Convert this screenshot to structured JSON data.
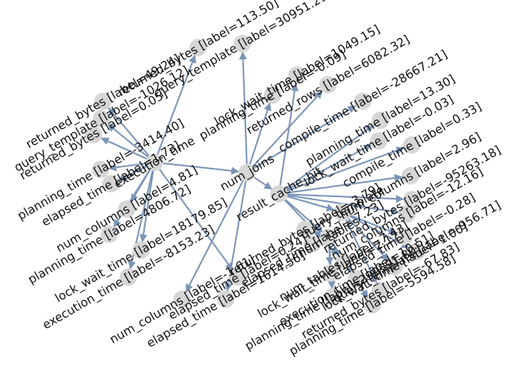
{
  "colors": {
    "node": "#d6d6d6",
    "edge": "#7b95b8",
    "text": "#111111"
  },
  "nodes": [
    {
      "id": "hub_left",
      "label": "execution_time"
    },
    {
      "id": "hub_mid",
      "label": "num_joins"
    },
    {
      "id": "hub_rc",
      "label": "result_cache_hit"
    },
    {
      "id": "hub_qt",
      "label": "query_template"
    },
    {
      "id": "hub_nt",
      "label": "num_tables"
    },
    {
      "id": "n1",
      "label": "returned_bytes [label=113.50]"
    },
    {
      "id": "n2",
      "label": "query_template [label=30951.29]"
    },
    {
      "id": "n3",
      "label": "lock_wait_time [label=1049.15]"
    },
    {
      "id": "n4",
      "label": "returned_bytes [label=49.24]"
    },
    {
      "id": "n5",
      "label": "planning_time [label=-0.09]"
    },
    {
      "id": "n6",
      "label": "planning_time [label=-3414.40]"
    },
    {
      "id": "n7",
      "label": "returned_rows [label=6082.32]"
    },
    {
      "id": "n8",
      "label": "compile_time [label=-28667.21]"
    },
    {
      "id": "n9",
      "label": "elapsed_time [label=1.73]"
    },
    {
      "id": "n10",
      "label": "planning_time [label=13.30]"
    },
    {
      "id": "n11",
      "label": "lock_wait_time [label=-0.03]"
    },
    {
      "id": "n12",
      "label": "num_columns [label=4.81]"
    },
    {
      "id": "n13",
      "label": "compile_time [label=0.33]"
    },
    {
      "id": "n14",
      "label": "num_columns [label=2.96]"
    },
    {
      "id": "n15",
      "label": "planning_time [label=4806.72]"
    },
    {
      "id": "n16",
      "label": "returned_bytes [label=-95263.18]"
    },
    {
      "id": "n17",
      "label": "lock_wait_time [label=18179.85]"
    },
    {
      "id": "n18",
      "label": "num_columns [label=-12.16]"
    },
    {
      "id": "n19",
      "label": "elapsed_time [label=-0.28]"
    },
    {
      "id": "n20",
      "label": "execution_time [label=-8153.23]"
    },
    {
      "id": "n21",
      "label": "query_template [label=-956.71]"
    },
    {
      "id": "n22",
      "label": "elapsed_time [label=0.24]"
    },
    {
      "id": "n23",
      "label": "lock_wait_time [label=1.00]"
    },
    {
      "id": "n24",
      "label": "num_columns [label=-1.61]"
    },
    {
      "id": "n25",
      "label": "returned_bytes [label=-3.79]"
    },
    {
      "id": "n26",
      "label": "returned_bytes [label=-67.83]"
    },
    {
      "id": "n27",
      "label": "elapsed_time [label=1614.56]"
    },
    {
      "id": "n28",
      "label": "planning_time [label=-5594.58]"
    },
    {
      "id": "n29",
      "label": "execution_time [label=10.51]"
    },
    {
      "id": "n30",
      "label": "num_tables [label=7.43]"
    },
    {
      "id": "n31",
      "label": "lock_wait_time [label=2.17]"
    },
    {
      "id": "n32",
      "label": "planning_time [label=299591.80]"
    },
    {
      "id": "n33",
      "label": "elapsed_time [label=-7.23]"
    },
    {
      "id": "n34",
      "label": "query_template [label=-1026.12]"
    },
    {
      "id": "n35",
      "label": "returned_bytes [label=0.05]"
    }
  ],
  "edges": [
    [
      "hub_left",
      "n1"
    ],
    [
      "hub_left",
      "n4"
    ],
    [
      "hub_left",
      "n6"
    ],
    [
      "hub_left",
      "n9"
    ],
    [
      "hub_left",
      "n12"
    ],
    [
      "hub_left",
      "n15"
    ],
    [
      "hub_left",
      "n17"
    ],
    [
      "hub_left",
      "n20"
    ],
    [
      "hub_left",
      "n22"
    ],
    [
      "hub_left",
      "n34"
    ],
    [
      "hub_left",
      "n35"
    ],
    [
      "hub_left",
      "hub_mid"
    ],
    [
      "hub_mid",
      "n2"
    ],
    [
      "hub_mid",
      "n5"
    ],
    [
      "hub_mid",
      "n7"
    ],
    [
      "hub_mid",
      "n8"
    ],
    [
      "hub_mid",
      "n24"
    ],
    [
      "hub_mid",
      "n27"
    ],
    [
      "hub_mid",
      "hub_rc"
    ],
    [
      "hub_rc",
      "n3"
    ],
    [
      "hub_rc",
      "n10"
    ],
    [
      "hub_rc",
      "n11"
    ],
    [
      "hub_rc",
      "n13"
    ],
    [
      "hub_rc",
      "n14"
    ],
    [
      "hub_rc",
      "n16"
    ],
    [
      "hub_rc",
      "n18"
    ],
    [
      "hub_rc",
      "n30"
    ],
    [
      "hub_rc",
      "hub_qt"
    ],
    [
      "hub_qt",
      "n19"
    ],
    [
      "hub_qt",
      "n21"
    ],
    [
      "hub_qt",
      "n23"
    ],
    [
      "hub_qt",
      "n26"
    ],
    [
      "hub_nt",
      "n25"
    ],
    [
      "hub_nt",
      "n28"
    ],
    [
      "hub_nt",
      "n29"
    ],
    [
      "hub_nt",
      "n31"
    ],
    [
      "hub_nt",
      "n32"
    ],
    [
      "hub_nt",
      "n33"
    ],
    [
      "hub_rc",
      "hub_nt"
    ]
  ]
}
